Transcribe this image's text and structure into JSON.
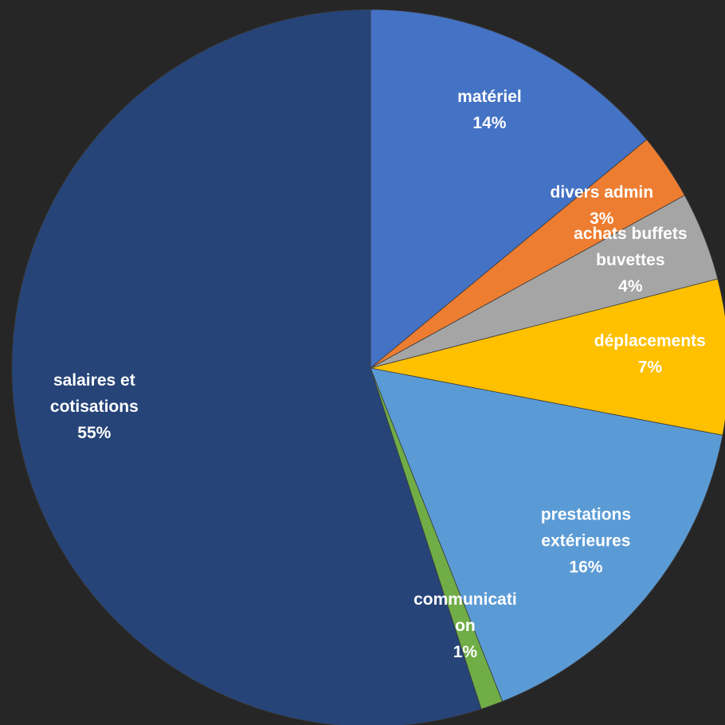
{
  "chart_data": {
    "type": "pie",
    "categories": [
      "matériel",
      "divers admin",
      "achats buffets\nbuvettes",
      "déplacements",
      "prestations\nextérieures",
      "communicati\non",
      "salaires et\ncotisations"
    ],
    "values": [
      14,
      3,
      4,
      7,
      16,
      1,
      55
    ],
    "value_labels": [
      "14%",
      "3%",
      "4%",
      "7%",
      "16%",
      "1%",
      "55%"
    ],
    "colors": [
      "#4472c4",
      "#ed7d31",
      "#a5a5a5",
      "#ffc000",
      "#5b9bd5",
      "#70ad47",
      "#264478"
    ]
  }
}
